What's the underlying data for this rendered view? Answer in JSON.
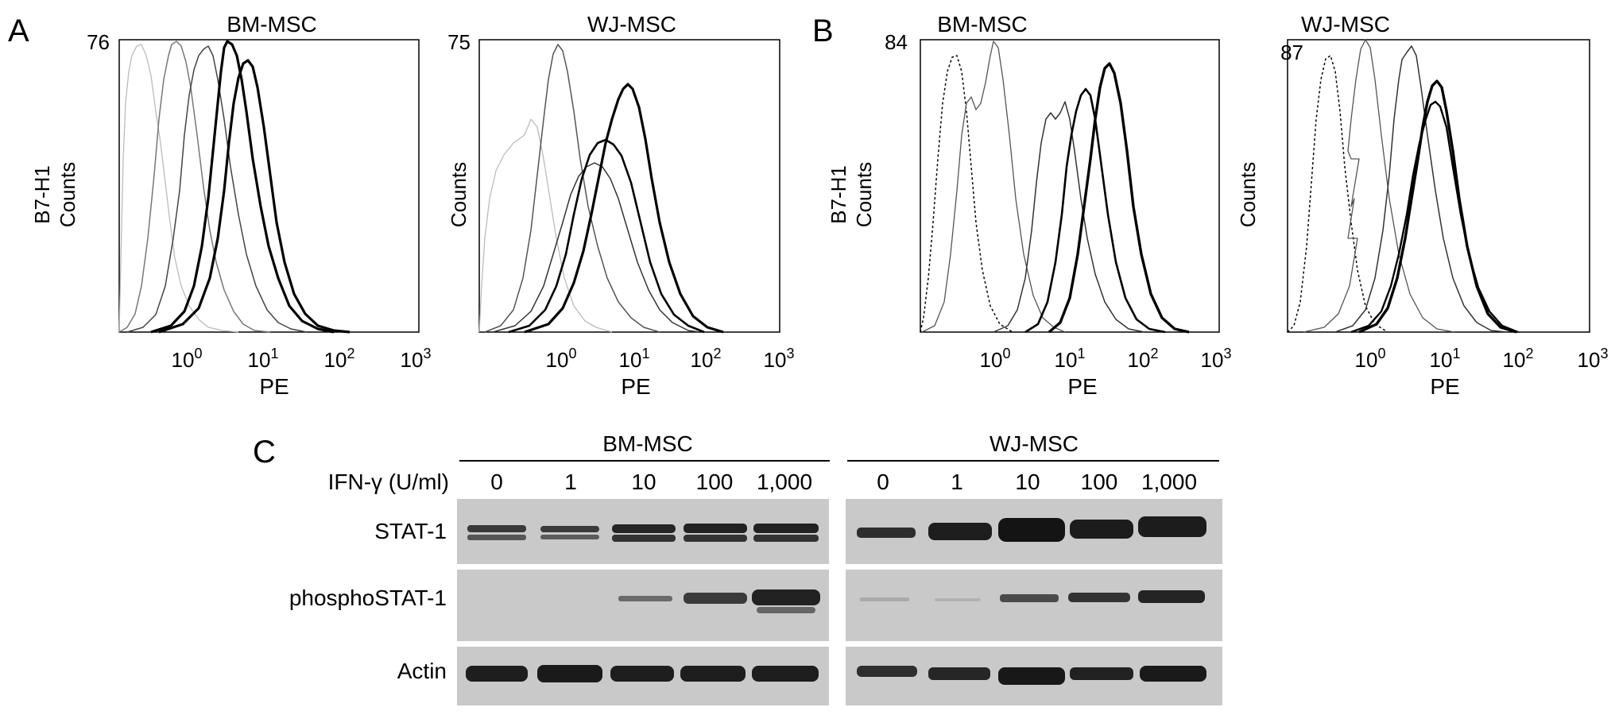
{
  "panel_a": {
    "letter": "A",
    "plots": [
      {
        "title": "BM-MSC",
        "ymax": "76",
        "ylabel": [
          "B7-H1",
          "Counts"
        ],
        "xlabel": "PE",
        "xticks": [
          {
            "base": "10",
            "exp": "0"
          },
          {
            "base": "10",
            "exp": "1"
          },
          {
            "base": "10",
            "exp": "2"
          },
          {
            "base": "10",
            "exp": "3"
          }
        ]
      },
      {
        "title": "WJ-MSC",
        "ymax": "75",
        "ylabel": [
          "Counts"
        ],
        "xlabel": "PE",
        "xticks": [
          {
            "base": "10",
            "exp": "0"
          },
          {
            "base": "10",
            "exp": "1"
          },
          {
            "base": "10",
            "exp": "2"
          },
          {
            "base": "10",
            "exp": "3"
          }
        ]
      }
    ]
  },
  "panel_b": {
    "letter": "B",
    "plots": [
      {
        "title": "BM-MSC",
        "ymax": "84",
        "ylabel": [
          "B7-H1",
          "Counts"
        ],
        "xlabel": "PE",
        "xticks": [
          {
            "base": "10",
            "exp": "0"
          },
          {
            "base": "10",
            "exp": "1"
          },
          {
            "base": "10",
            "exp": "2"
          },
          {
            "base": "10",
            "exp": "3"
          }
        ]
      },
      {
        "title": "WJ-MSC",
        "ymax": "87",
        "ylabel": [
          "Counts"
        ],
        "xlabel": "PE",
        "xticks": [
          {
            "base": "10",
            "exp": "0"
          },
          {
            "base": "10",
            "exp": "1"
          },
          {
            "base": "10",
            "exp": "2"
          },
          {
            "base": "10",
            "exp": "3"
          }
        ]
      }
    ]
  },
  "panel_c": {
    "letter": "C",
    "group1": "BM-MSC",
    "group2": "WJ-MSC",
    "dose_label": "IFN-γ (U/ml)",
    "doses": [
      "0",
      "1",
      "10",
      "100",
      "1,000"
    ],
    "rows": [
      "STAT-1",
      "phosphoSTAT-1",
      "Actin"
    ]
  }
}
